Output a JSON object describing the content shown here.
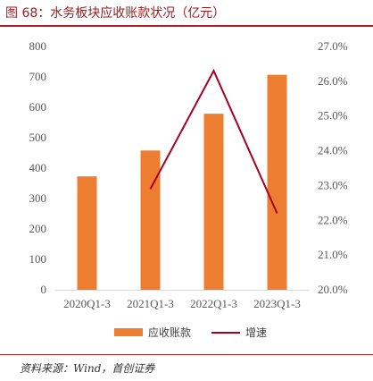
{
  "header": {
    "title": "图 68：水务板块应收账款状况（亿元）"
  },
  "footer": {
    "source": "资料来源：Wind，首创证券"
  },
  "chart_data": {
    "type": "bar",
    "title": "图 68：水务板块应收账款状况（亿元）",
    "categories": [
      "2020Q1-3",
      "2021Q1-3",
      "2022Q1-3",
      "2023Q1-3"
    ],
    "series": [
      {
        "name": "应收账款",
        "type": "bar",
        "axis": "left",
        "values": [
          373,
          458,
          579,
          707
        ],
        "color": "#ED7D31"
      },
      {
        "name": "增速",
        "type": "line",
        "axis": "right",
        "values": [
          null,
          22.9,
          26.3,
          22.2
        ],
        "color": "#A50021"
      }
    ],
    "y_left": {
      "min": 0,
      "max": 800,
      "ticks": [
        "0",
        "100",
        "200",
        "300",
        "400",
        "500",
        "600",
        "700",
        "800"
      ]
    },
    "y_right": {
      "min": 20.0,
      "max": 27.0,
      "ticks": [
        "20.0%",
        "21.0%",
        "22.0%",
        "23.0%",
        "24.0%",
        "25.0%",
        "26.0%",
        "27.0%"
      ]
    },
    "legend": {
      "position": "bottom",
      "items": [
        "应收账款",
        "增速"
      ]
    },
    "grid": false
  }
}
